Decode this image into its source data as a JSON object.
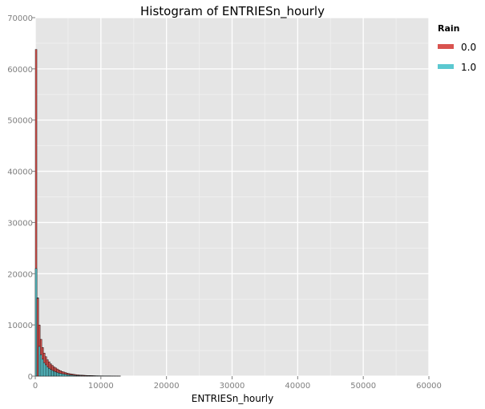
{
  "chart_data": {
    "type": "bar",
    "title": "Histogram of ENTRIESn_hourly",
    "xlabel": "ENTRIESn_hourly",
    "ylabel": "",
    "xlim": [
      0,
      60000
    ],
    "ylim": [
      0,
      70000
    ],
    "x_ticks": [
      0,
      10000,
      20000,
      30000,
      40000,
      50000,
      60000
    ],
    "y_ticks": [
      0,
      10000,
      20000,
      30000,
      40000,
      50000,
      60000,
      70000
    ],
    "x_tick_labels": [
      "0",
      "10000",
      "20000",
      "30000",
      "40000",
      "50000",
      "60000"
    ],
    "y_tick_labels": [
      "0",
      "10000",
      "20000",
      "30000",
      "40000",
      "50000",
      "60000",
      "70000"
    ],
    "grid": true,
    "legend": {
      "title": "Rain",
      "placement": "right",
      "entries": [
        "0.0",
        "1.0"
      ]
    },
    "bin_width": 250,
    "x": [
      0,
      250,
      500,
      750,
      1000,
      1250,
      1500,
      1750,
      2000,
      2250,
      2500,
      2750,
      3000,
      3250,
      3500,
      3750,
      4000,
      4250,
      4500,
      4750,
      5000,
      5250,
      5500,
      5750,
      6000,
      6250,
      6500,
      6750,
      7000,
      7250,
      7500,
      7750,
      8000,
      8250,
      8500,
      8750,
      9000,
      9250,
      9500,
      9750,
      10000,
      10250,
      10500,
      10750,
      11000,
      11250,
      11500,
      11750,
      12000,
      12250,
      12500,
      12750
    ],
    "series": [
      {
        "name": "0.0",
        "color": "#d9534f",
        "values": [
          63800,
          15200,
          10000,
          7200,
          5600,
          4500,
          3800,
          3200,
          2800,
          2400,
          2100,
          1800,
          1600,
          1400,
          1200,
          1050,
          900,
          800,
          700,
          600,
          520,
          460,
          400,
          350,
          310,
          270,
          240,
          210,
          190,
          170,
          150,
          130,
          120,
          110,
          100,
          90,
          80,
          70,
          65,
          60,
          55,
          50,
          45,
          40,
          36,
          32,
          28,
          25,
          22,
          20,
          18,
          15
        ]
      },
      {
        "name": "1.0",
        "color": "#5bc8d0",
        "values": [
          21000,
          15300,
          5800,
          4200,
          3300,
          2600,
          2200,
          1800,
          1500,
          1300,
          1100,
          950,
          820,
          700,
          600,
          520,
          450,
          400,
          350,
          300,
          260,
          220,
          190,
          160,
          140,
          120,
          100,
          90,
          80,
          70,
          60,
          55,
          50,
          45,
          40,
          35,
          30,
          28,
          25,
          22,
          20,
          18,
          16,
          14,
          12,
          11,
          10,
          9,
          8,
          7,
          6,
          5
        ]
      }
    ],
    "colors": {
      "panel_background": "#e5e5e5",
      "grid_major": "#ffffff",
      "grid_minor": "#efefef",
      "bar_outline": "#000000"
    }
  }
}
